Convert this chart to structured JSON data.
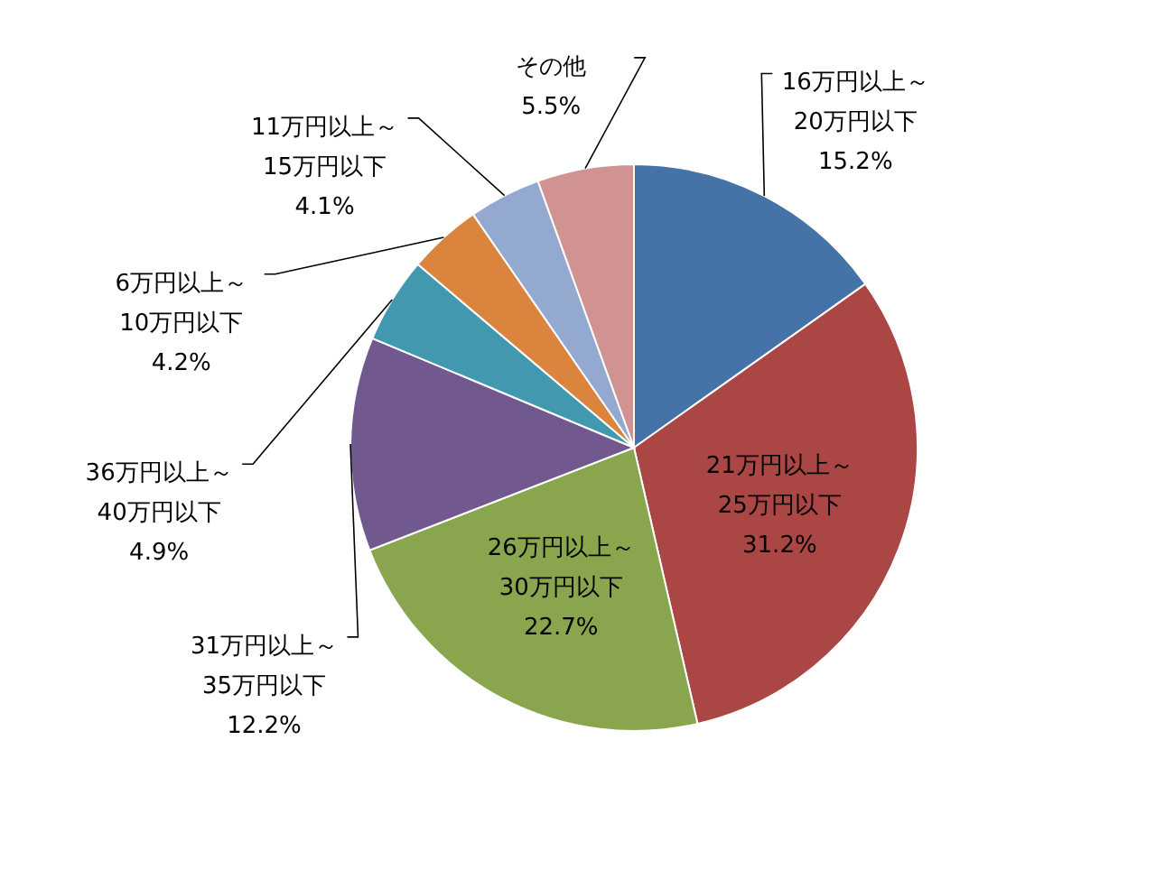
{
  "chart_data": {
    "type": "pie",
    "categories": [
      "16万円以上～\n20万円以下",
      "21万円以上～\n25万円以下",
      "26万円以上～\n30万円以下",
      "31万円以上～\n35万円以下",
      "36万円以上～\n40万円以下",
      "6万円以上～\n10万円以下",
      "11万円以上～\n15万円以下",
      "その他"
    ],
    "values": [
      15.2,
      31.2,
      22.7,
      12.2,
      4.9,
      4.2,
      4.1,
      5.5
    ],
    "colors": [
      "#4572a7",
      "#aa4643",
      "#89a54e",
      "#71588f",
      "#4198af",
      "#db843d",
      "#93a9cf",
      "#d19392"
    ],
    "value_labels": [
      "15.2%",
      "31.2%",
      "22.7%",
      "12.2%",
      "4.9%",
      "4.2%",
      "4.1%",
      "5.5%"
    ]
  }
}
